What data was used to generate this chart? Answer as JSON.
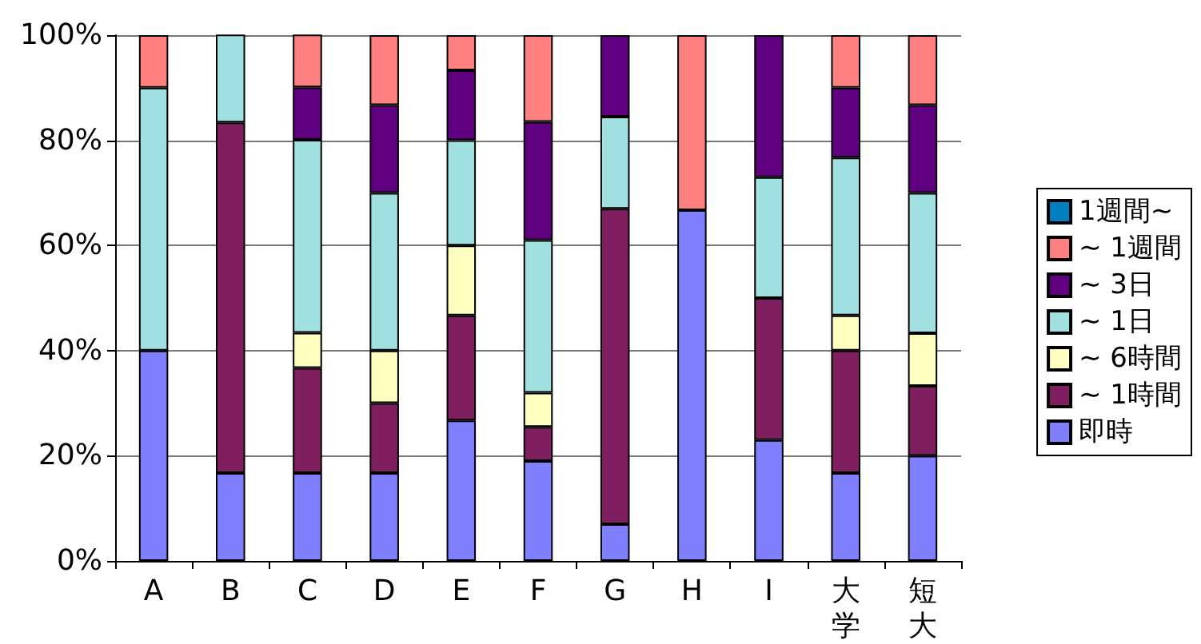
{
  "chart_data": {
    "type": "bar",
    "stacked": true,
    "categories": [
      "A",
      "B",
      "C",
      "D",
      "E",
      "F",
      "G",
      "H",
      "I",
      "大学",
      "短大"
    ],
    "series": [
      {
        "name": "即時",
        "color": "#8080ff",
        "values": [
          40,
          16.7,
          16.7,
          16.7,
          26.7,
          19,
          7,
          66.7,
          23,
          16.7,
          20
        ]
      },
      {
        "name": "~ 1時間",
        "color": "#801f60",
        "values": [
          0,
          66.7,
          20,
          13.3,
          20,
          6.5,
          60,
          0,
          27,
          23.3,
          13.3
        ]
      },
      {
        "name": "~ 6時間",
        "color": "#ffffc0",
        "values": [
          0,
          0,
          6.7,
          10,
          13.3,
          6.5,
          0,
          0,
          0,
          6.7,
          10
        ]
      },
      {
        "name": "~ 1日",
        "color": "#a0e0e0",
        "values": [
          50,
          16.7,
          36.7,
          30,
          20,
          29,
          17.5,
          0,
          23,
          30,
          26.7
        ]
      },
      {
        "name": "~ 3日",
        "color": "#600080",
        "values": [
          0,
          0,
          10,
          16.7,
          13.3,
          22.5,
          15.5,
          0,
          27,
          13.3,
          16.7
        ]
      },
      {
        "name": "~ 1週間",
        "color": "#ff8080",
        "values": [
          10,
          0,
          10,
          13.3,
          6.7,
          16.5,
          0,
          33.3,
          0,
          10,
          13.3
        ]
      },
      {
        "name": "1週間~",
        "color": "#0080c0",
        "values": [
          0,
          0,
          0,
          0,
          0,
          0,
          0,
          0,
          0,
          0,
          0
        ]
      }
    ],
    "ylim": [
      0,
      100
    ],
    "yticks": [
      {
        "value": 0,
        "label": "0%"
      },
      {
        "value": 20,
        "label": "20%"
      },
      {
        "value": 40,
        "label": "40%"
      },
      {
        "value": 60,
        "label": "60%"
      },
      {
        "value": 80,
        "label": "80%"
      },
      {
        "value": 100,
        "label": "100%"
      }
    ],
    "grid": "y",
    "legend": "right"
  }
}
